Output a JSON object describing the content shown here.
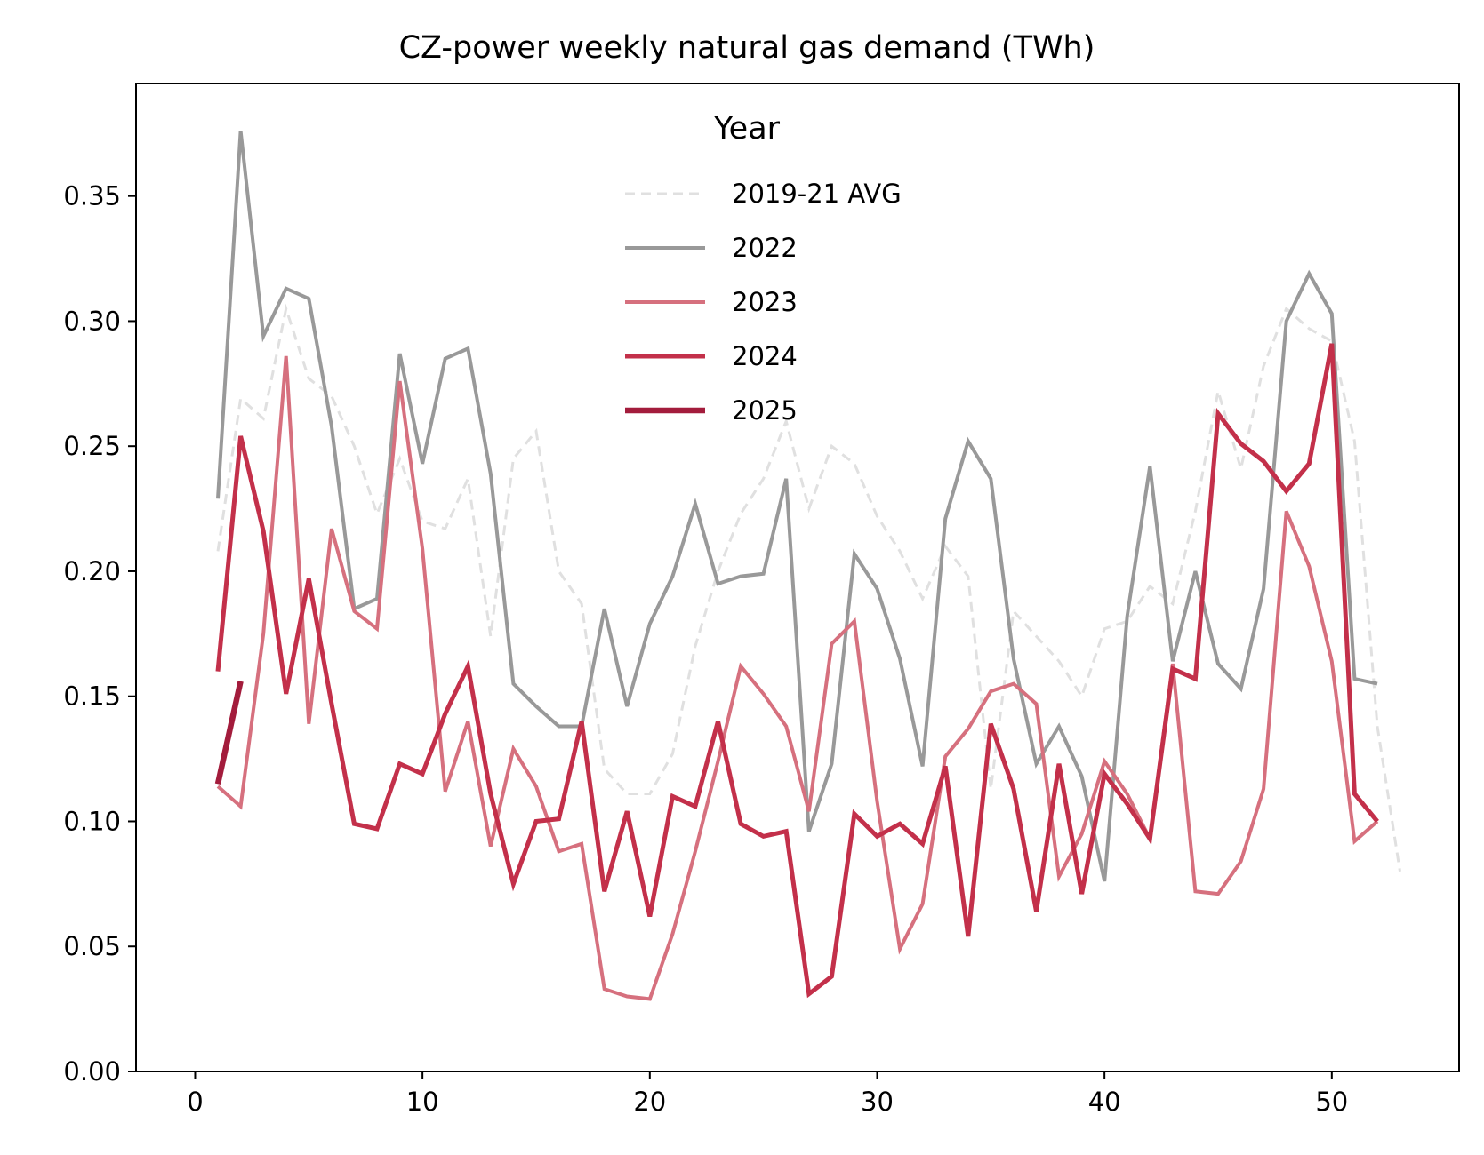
{
  "chart_data": {
    "type": "line",
    "title": "CZ-power weekly natural gas demand (TWh)",
    "xlabel": "",
    "ylabel": "",
    "xlim": [
      -2.6,
      55.6
    ],
    "ylim": [
      0,
      0.395
    ],
    "xticks": [
      0,
      10,
      20,
      30,
      40,
      50
    ],
    "yticks": [
      0.0,
      0.05,
      0.1,
      0.15,
      0.2,
      0.25,
      0.3,
      0.35
    ],
    "grid": false,
    "legend": {
      "title": "Year",
      "placement": "top-center"
    },
    "series": [
      {
        "name": "2019-21 AVG",
        "color": "#e0e0e0",
        "dashed": true,
        "width": 3,
        "x": [
          1,
          2,
          3,
          4,
          5,
          6,
          7,
          8,
          9,
          10,
          11,
          12,
          13,
          14,
          15,
          16,
          17,
          18,
          19,
          20,
          21,
          22,
          23,
          24,
          25,
          26,
          27,
          28,
          29,
          30,
          31,
          32,
          33,
          34,
          35,
          36,
          37,
          38,
          39,
          40,
          41,
          42,
          43,
          44,
          45,
          46,
          47,
          48,
          49,
          50,
          51,
          52,
          53
        ],
        "y": [
          0.208,
          0.269,
          0.261,
          0.305,
          0.277,
          0.27,
          0.25,
          0.223,
          0.245,
          0.22,
          0.217,
          0.237,
          0.174,
          0.245,
          0.256,
          0.2,
          0.187,
          0.121,
          0.111,
          0.111,
          0.127,
          0.17,
          0.2,
          0.223,
          0.237,
          0.26,
          0.225,
          0.25,
          0.243,
          0.222,
          0.208,
          0.189,
          0.21,
          0.198,
          0.113,
          0.184,
          0.174,
          0.164,
          0.15,
          0.177,
          0.18,
          0.194,
          0.187,
          0.224,
          0.272,
          0.241,
          0.282,
          0.305,
          0.297,
          0.292,
          0.252,
          0.138,
          0.08
        ]
      },
      {
        "name": "2022",
        "color": "#999999",
        "dashed": false,
        "width": 4,
        "x": [
          1,
          2,
          3,
          4,
          5,
          6,
          7,
          8,
          9,
          10,
          11,
          12,
          13,
          14,
          15,
          16,
          17,
          18,
          19,
          20,
          21,
          22,
          23,
          24,
          25,
          26,
          27,
          28,
          29,
          30,
          31,
          32,
          33,
          34,
          35,
          36,
          37,
          38,
          39,
          40,
          41,
          42,
          43,
          44,
          45,
          46,
          47,
          48,
          49,
          50,
          51,
          52
        ],
        "y": [
          0.229,
          0.376,
          0.294,
          0.313,
          0.309,
          0.258,
          0.185,
          0.189,
          0.287,
          0.243,
          0.285,
          0.289,
          0.239,
          0.155,
          0.146,
          0.138,
          0.138,
          0.185,
          0.146,
          0.179,
          0.198,
          0.227,
          0.195,
          0.198,
          0.199,
          0.237,
          0.096,
          0.123,
          0.207,
          0.193,
          0.165,
          0.122,
          0.221,
          0.252,
          0.237,
          0.165,
          0.123,
          0.138,
          0.118,
          0.076,
          0.182,
          0.242,
          0.164,
          0.2,
          0.163,
          0.153,
          0.193,
          0.3,
          0.319,
          0.303,
          0.157,
          0.155
        ]
      },
      {
        "name": "2023",
        "color": "#d6707e",
        "dashed": false,
        "width": 4,
        "x": [
          1,
          2,
          3,
          4,
          5,
          6,
          7,
          8,
          9,
          10,
          11,
          12,
          13,
          14,
          15,
          16,
          17,
          18,
          19,
          20,
          21,
          22,
          23,
          24,
          25,
          26,
          27,
          28,
          29,
          30,
          31,
          32,
          33,
          34,
          35,
          36,
          37,
          38,
          39,
          40,
          41,
          42,
          43,
          44,
          45,
          46,
          47,
          48,
          49,
          50,
          51,
          52
        ],
        "y": [
          0.114,
          0.106,
          0.175,
          0.286,
          0.139,
          0.217,
          0.184,
          0.177,
          0.276,
          0.209,
          0.112,
          0.14,
          0.09,
          0.129,
          0.114,
          0.088,
          0.091,
          0.033,
          0.03,
          0.029,
          0.055,
          0.088,
          0.124,
          0.162,
          0.151,
          0.138,
          0.104,
          0.171,
          0.18,
          0.108,
          0.049,
          0.067,
          0.126,
          0.137,
          0.152,
          0.155,
          0.147,
          0.078,
          0.095,
          0.124,
          0.111,
          0.093,
          0.163,
          0.072,
          0.071,
          0.084,
          0.113,
          0.224,
          0.202,
          0.164,
          0.092,
          0.1
        ]
      },
      {
        "name": "2024",
        "color": "#c3304a",
        "dashed": false,
        "width": 5,
        "x": [
          1,
          2,
          3,
          4,
          5,
          6,
          7,
          8,
          9,
          10,
          11,
          12,
          13,
          14,
          15,
          16,
          17,
          18,
          19,
          20,
          21,
          22,
          23,
          24,
          25,
          26,
          27,
          28,
          29,
          30,
          31,
          32,
          33,
          34,
          35,
          36,
          37,
          38,
          39,
          40,
          41,
          42,
          43,
          44,
          45,
          46,
          47,
          48,
          49,
          50,
          51,
          52
        ],
        "y": [
          0.16,
          0.254,
          0.216,
          0.151,
          0.197,
          0.147,
          0.099,
          0.097,
          0.123,
          0.119,
          0.143,
          0.162,
          0.111,
          0.075,
          0.1,
          0.101,
          0.14,
          0.072,
          0.104,
          0.062,
          0.11,
          0.106,
          0.14,
          0.099,
          0.094,
          0.096,
          0.031,
          0.038,
          0.103,
          0.094,
          0.099,
          0.091,
          0.122,
          0.054,
          0.139,
          0.113,
          0.064,
          0.123,
          0.071,
          0.119,
          0.107,
          0.093,
          0.161,
          0.157,
          0.263,
          0.251,
          0.244,
          0.232,
          0.243,
          0.291,
          0.111,
          0.1
        ]
      },
      {
        "name": "2025",
        "color": "#a31c3c",
        "dashed": false,
        "width": 6.5,
        "x": [
          1,
          2
        ],
        "y": [
          0.115,
          0.156
        ]
      }
    ]
  }
}
